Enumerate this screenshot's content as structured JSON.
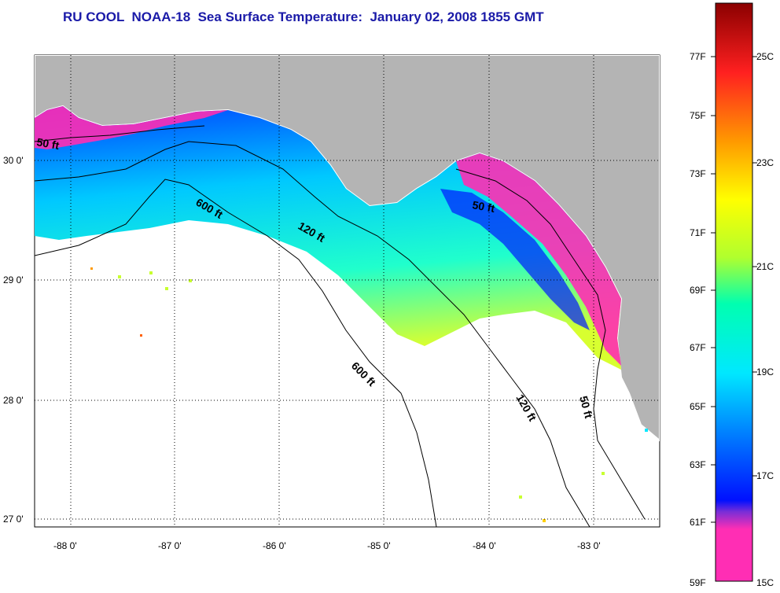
{
  "title": "RU COOL  NOAA-18  Sea Surface Temperature:  January 02, 2008 1855 GMT",
  "map": {
    "lat_labels": [
      "30 0'",
      "29 0'",
      "28 0'",
      "27 0'"
    ],
    "lon_labels": [
      "-88 0'",
      "-87 0'",
      "-86 0'",
      "-85 0'",
      "-84 0'",
      "-83 0'"
    ],
    "isobath_labels": [
      "50 ft",
      "600 ft",
      "120 ft",
      "50 ft",
      "600 ft",
      "120 ft",
      "50 ft"
    ],
    "colors": {
      "land": "#b4b4b4",
      "ocean_no_data": "#ffffff",
      "coastline": "#ffffff",
      "isobath": "#000000"
    }
  },
  "colorbar": {
    "fahrenheit_labels": [
      "77F",
      "75F",
      "73F",
      "71F",
      "69F",
      "67F",
      "65F",
      "63F",
      "61F",
      "59F"
    ],
    "celsius_labels": [
      "25C",
      "23C",
      "21C",
      "19C",
      "17C",
      "15C"
    ],
    "color_stops": [
      "#ff2eb4",
      "#7a2ed6",
      "#0010ff",
      "#0070ff",
      "#00e8ff",
      "#00ffb0",
      "#b0ff2e",
      "#ffff00",
      "#ff9a00",
      "#ff2020",
      "#8b0000"
    ]
  }
}
